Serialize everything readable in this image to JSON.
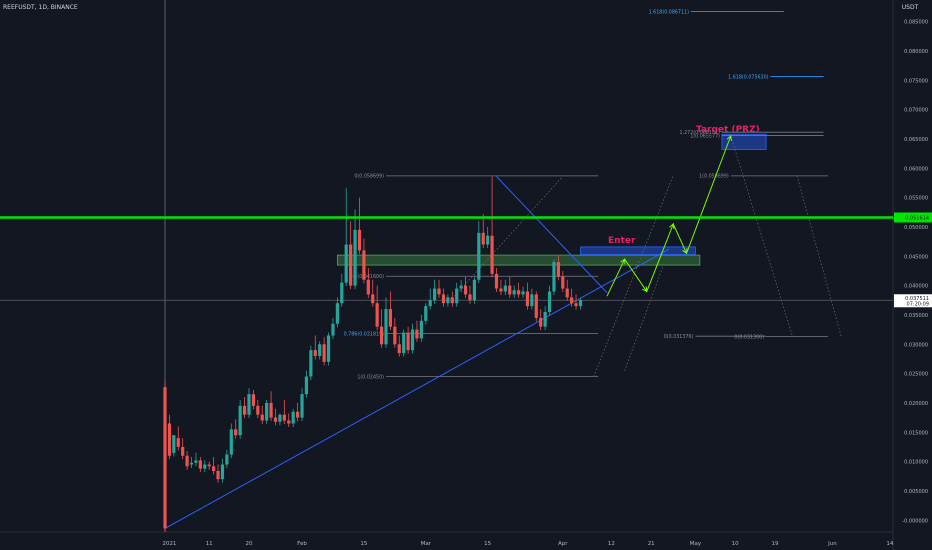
{
  "header": {
    "symbol_label": "REEFUSDT, 1D, BINANCE",
    "currency_label": "USDT"
  },
  "colors": {
    "background": "#131722",
    "up": "#26a69a",
    "down": "#ef5350",
    "trendline": "#2962ff",
    "resistance": "#00e600",
    "fib": "#787b86",
    "fib_label": "#42a5f5",
    "target_text": "#e91e63",
    "projection": "#7CFC00"
  },
  "chart_data": {
    "type": "candlestick",
    "title": "REEFUSDT, 1D, BINANCE",
    "xlabel": "",
    "ylabel": "USDT",
    "ylim": [
      -0.002,
      0.088
    ],
    "y_ticks": [
      "0.085000",
      "0.080000",
      "0.075000",
      "0.070000",
      "0.065000",
      "0.060000",
      "0.055000",
      "0.050000",
      "0.045000",
      "0.040000",
      "0.035000",
      "0.030000",
      "0.025000",
      "0.020000",
      "0.015000",
      "0.010000",
      "0.005000",
      "-0.000000"
    ],
    "x_ticks": [
      {
        "label": "2021",
        "x": 1
      },
      {
        "label": "11",
        "x": 10
      },
      {
        "label": "20",
        "x": 19
      },
      {
        "label": "Feb",
        "x": 31
      },
      {
        "label": "15",
        "x": 45
      },
      {
        "label": "Mar",
        "x": 59
      },
      {
        "label": "15",
        "x": 73
      },
      {
        "label": "Apr",
        "x": 90
      },
      {
        "label": "12",
        "x": 101
      },
      {
        "label": "21",
        "x": 110
      },
      {
        "label": "May",
        "x": 120
      },
      {
        "label": "10",
        "x": 129
      },
      {
        "label": "19",
        "x": 138
      },
      {
        "label": "Jun",
        "x": 151
      },
      {
        "label": "14",
        "x": 164
      }
    ],
    "candles_ohc": [
      [
        0.0227,
        0.0238,
        -0.0014
      ],
      [
        0.0165,
        0.018,
        0.011
      ],
      [
        0.0115,
        0.0145,
        0.0145
      ],
      [
        0.014,
        0.016,
        0.0125
      ],
      [
        0.0125,
        0.014,
        0.011
      ],
      [
        0.011,
        0.0118,
        0.0092
      ],
      [
        0.0095,
        0.0108,
        0.0098
      ],
      [
        0.0098,
        0.0115,
        0.0102
      ],
      [
        0.0102,
        0.0108,
        0.0088
      ],
      [
        0.0088,
        0.0102,
        0.0095
      ],
      [
        0.0095,
        0.01,
        0.0092
      ],
      [
        0.0092,
        0.0108,
        0.0084
      ],
      [
        0.0084,
        0.0095,
        0.007
      ],
      [
        0.007,
        0.0105,
        0.0095
      ],
      [
        0.0095,
        0.012,
        0.0112
      ],
      [
        0.0112,
        0.0165,
        0.0155
      ],
      [
        0.0155,
        0.0172,
        0.0145
      ],
      [
        0.0145,
        0.0205,
        0.0195
      ],
      [
        0.0195,
        0.021,
        0.018
      ],
      [
        0.018,
        0.0225,
        0.0215
      ],
      [
        0.0215,
        0.0222,
        0.0195
      ],
      [
        0.0195,
        0.0205,
        0.018
      ],
      [
        0.018,
        0.0195,
        0.017
      ],
      [
        0.017,
        0.0205,
        0.02
      ],
      [
        0.02,
        0.022,
        0.0175
      ],
      [
        0.0175,
        0.019,
        0.0168
      ],
      [
        0.0168,
        0.0182,
        0.018
      ],
      [
        0.018,
        0.0205,
        0.017
      ],
      [
        0.017,
        0.0182,
        0.0165
      ],
      [
        0.0165,
        0.019,
        0.0185
      ],
      [
        0.0185,
        0.02,
        0.0175
      ],
      [
        0.0175,
        0.0225,
        0.0215
      ],
      [
        0.0215,
        0.0255,
        0.0245
      ],
      [
        0.0245,
        0.0298,
        0.029
      ],
      [
        0.029,
        0.0315,
        0.028
      ],
      [
        0.028,
        0.0305,
        0.03
      ],
      [
        0.03,
        0.0312,
        0.027
      ],
      [
        0.027,
        0.032,
        0.0315
      ],
      [
        0.0315,
        0.0345,
        0.0335
      ],
      [
        0.0335,
        0.038,
        0.037
      ],
      [
        0.037,
        0.042,
        0.0405
      ],
      [
        0.0405,
        0.0566,
        0.047
      ],
      [
        0.047,
        0.051,
        0.04
      ],
      [
        0.04,
        0.053,
        0.0495
      ],
      [
        0.0495,
        0.055,
        0.046
      ],
      [
        0.046,
        0.048,
        0.041
      ],
      [
        0.041,
        0.043,
        0.0385
      ],
      [
        0.0385,
        0.041,
        0.037
      ],
      [
        0.037,
        0.04,
        0.033
      ],
      [
        0.033,
        0.036,
        0.03
      ],
      [
        0.03,
        0.038,
        0.036
      ],
      [
        0.036,
        0.039,
        0.033
      ],
      [
        0.033,
        0.0345,
        0.03
      ],
      [
        0.03,
        0.0315,
        0.0285
      ],
      [
        0.0285,
        0.0325,
        0.032
      ],
      [
        0.032,
        0.033,
        0.029
      ],
      [
        0.029,
        0.0335,
        0.0325
      ],
      [
        0.0325,
        0.034,
        0.031
      ],
      [
        0.031,
        0.035,
        0.034
      ],
      [
        0.034,
        0.037,
        0.0365
      ],
      [
        0.0365,
        0.0395,
        0.0375
      ],
      [
        0.0375,
        0.041,
        0.0395
      ],
      [
        0.0395,
        0.041,
        0.0385
      ],
      [
        0.0385,
        0.0395,
        0.037
      ],
      [
        0.037,
        0.0385,
        0.038
      ],
      [
        0.038,
        0.039,
        0.037
      ],
      [
        0.037,
        0.0405,
        0.0395
      ],
      [
        0.0395,
        0.041,
        0.04
      ],
      [
        0.04,
        0.0415,
        0.0385
      ],
      [
        0.0385,
        0.04,
        0.0375
      ],
      [
        0.0375,
        0.0415,
        0.041
      ],
      [
        0.041,
        0.051,
        0.049
      ],
      [
        0.049,
        0.0522,
        0.047
      ],
      [
        0.047,
        0.05,
        0.0485
      ],
      [
        0.0485,
        0.0586,
        0.042
      ],
      [
        0.042,
        0.043,
        0.0395
      ],
      [
        0.0395,
        0.041,
        0.039
      ],
      [
        0.039,
        0.041,
        0.04
      ],
      [
        0.04,
        0.0415,
        0.0385
      ],
      [
        0.0385,
        0.04,
        0.0392
      ],
      [
        0.0392,
        0.0405,
        0.0385
      ],
      [
        0.0385,
        0.0398,
        0.039
      ],
      [
        0.039,
        0.0405,
        0.0365
      ],
      [
        0.0365,
        0.0395,
        0.0385
      ],
      [
        0.0385,
        0.039,
        0.0345
      ],
      [
        0.0345,
        0.036,
        0.033
      ],
      [
        0.033,
        0.0365,
        0.0355
      ],
      [
        0.0355,
        0.04,
        0.039
      ],
      [
        0.039,
        0.0445,
        0.044
      ],
      [
        0.044,
        0.045,
        0.0415
      ],
      [
        0.0415,
        0.0425,
        0.0395
      ],
      [
        0.0395,
        0.041,
        0.038
      ],
      [
        0.038,
        0.0395,
        0.037
      ],
      [
        0.037,
        0.0385,
        0.0365
      ],
      [
        0.0365,
        0.0378,
        0.0375
      ]
    ],
    "price_line": {
      "value": 0.0375,
      "label": "0.037511",
      "countdown": "07:20:09"
    },
    "resistance_line": {
      "value": 0.05161,
      "label": "0.051614"
    },
    "trendlines": [
      {
        "x1": 0,
        "y1": -0.0014,
        "x2": 114,
        "y2": 0.0462
      },
      {
        "x1": 75,
        "y1": 0.0586,
        "x2": 100,
        "y2": 0.0388
      }
    ],
    "zones": [
      {
        "name": "breakout-zone",
        "x1": 39,
        "x2": 121,
        "y1": 0.0435,
        "y2": 0.0452
      },
      {
        "name": "entry-zone",
        "x1": 94,
        "x2": 120,
        "y1": 0.0453,
        "y2": 0.0466
      },
      {
        "name": "target-prz",
        "x1": 126,
        "x2": 136,
        "y1": 0.0632,
        "y2": 0.0658
      }
    ],
    "fib_levels": [
      {
        "x1": 50,
        "x2": 98,
        "value": 0.058699,
        "label": "0(0.058699)"
      },
      {
        "x1": 50,
        "x2": 98,
        "value": 0.0416,
        "label": "0.5(0.041600)"
      },
      {
        "x1": 50,
        "x2": 98,
        "value": 0.031819,
        "label": "0.786(0.031819)"
      },
      {
        "x1": 50,
        "x2": 98,
        "value": 0.0245,
        "label": "1(0.02450)"
      },
      {
        "x1": 126,
        "x2": 149,
        "value": 0.065577,
        "label": "1(0.065577)"
      },
      {
        "x1": 126,
        "x2": 149,
        "value": 0.066151,
        "label": "1.272(0.066151)"
      },
      {
        "x1": 119,
        "x2": 140,
        "value": 0.086711,
        "label": "1.618(0.086711)"
      },
      {
        "x1": 137,
        "x2": 149,
        "value": 0.07563,
        "label": "1.618(0.075630)"
      },
      {
        "x1": 128,
        "x2": 150,
        "value": 0.058699,
        "label": "1(0.058699)"
      },
      {
        "x1": 120,
        "x2": 136,
        "value": 0.031376,
        "label": "0(0.031376)"
      },
      {
        "x1": 136,
        "x2": 150,
        "value": 0.0313,
        "label": "0(0.031300)"
      }
    ],
    "projection_path": [
      [
        100,
        0.0382
      ],
      [
        104,
        0.0445
      ],
      [
        109,
        0.039
      ],
      [
        115,
        0.0505
      ],
      [
        118,
        0.0455
      ],
      [
        128,
        0.0655
      ]
    ],
    "annotations": {
      "enter_label": "Enter",
      "target_label": "Target (PRZ)"
    }
  }
}
